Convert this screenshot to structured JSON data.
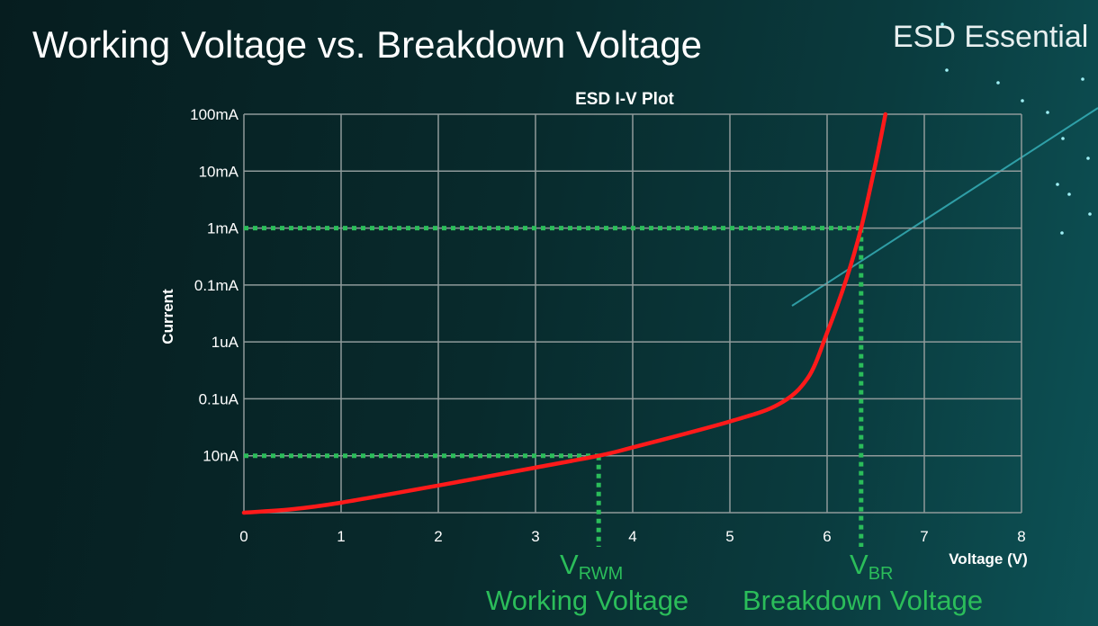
{
  "slide": {
    "title": "Working Voltage vs. Breakdown Voltage",
    "brand": "ESD Essential"
  },
  "annotations": {
    "vrwm_symbol": "V",
    "vrwm_sub": "RWM",
    "vrwm_label": "Working Voltage",
    "vbr_symbol": "V",
    "vbr_sub": "BR",
    "vbr_label": "Breakdown Voltage"
  },
  "colors": {
    "curve": "#ff1a1a",
    "guide": "#2bbd5a",
    "grid": "#8f9a9a",
    "background": "#082a2c"
  },
  "chart_data": {
    "type": "line",
    "title": "ESD I-V Plot",
    "xlabel": "Voltage (V)",
    "ylabel": "Current",
    "xlim": [
      0,
      8
    ],
    "x_ticks": [
      0,
      1,
      2,
      3,
      4,
      5,
      6,
      7,
      8
    ],
    "y_scale": "log",
    "y_ticks": [
      {
        "value": 1e-09,
        "label": ""
      },
      {
        "value": 1e-08,
        "label": "10nA"
      },
      {
        "value": 1e-07,
        "label": "0.1uA"
      },
      {
        "value": 1e-06,
        "label": "1uA"
      },
      {
        "value": 0.0001,
        "label": "0.1mA"
      },
      {
        "value": 0.001,
        "label": "1mA"
      },
      {
        "value": 0.01,
        "label": "10mA"
      },
      {
        "value": 0.1,
        "label": "100mA"
      }
    ],
    "grid": true,
    "series": [
      {
        "x": [
          0,
          0.5,
          1,
          2,
          3,
          3.65,
          4,
          5,
          5.5,
          5.8,
          6,
          6.2,
          6.35,
          6.5,
          6.6
        ],
        "y": [
          1e-09,
          1.15e-09,
          1.5e-09,
          3e-09,
          6.2e-09,
          1e-08,
          1.4e-08,
          4e-08,
          8e-08,
          2.3e-07,
          2.1e-06,
          0.00013,
          0.001,
          0.014,
          0.1
        ]
      }
    ],
    "reference_points": [
      {
        "name": "VRWM",
        "voltage": 3.65,
        "current": 1e-08
      },
      {
        "name": "VBR",
        "voltage": 6.35,
        "current": 0.001
      }
    ]
  }
}
